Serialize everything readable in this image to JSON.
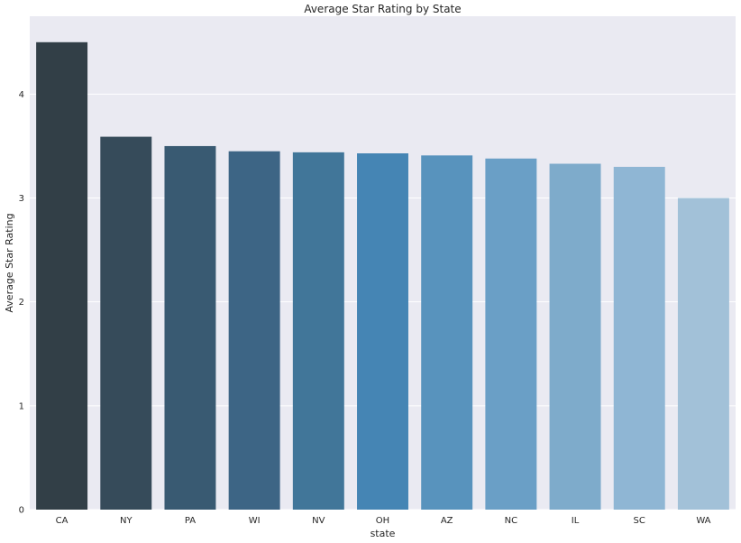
{
  "chart_data": {
    "type": "bar",
    "title": "Average Star Rating by State",
    "xlabel": "state",
    "ylabel": "Average Star Rating",
    "categories": [
      "CA",
      "NY",
      "PA",
      "WI",
      "NV",
      "OH",
      "AZ",
      "NC",
      "IL",
      "SC",
      "WA"
    ],
    "values": [
      4.5,
      3.59,
      3.5,
      3.45,
      3.44,
      3.43,
      3.41,
      3.38,
      3.33,
      3.3,
      3.0
    ],
    "ylim": [
      0,
      4.75
    ],
    "yticks": [
      "0",
      "1",
      "2",
      "3",
      "4"
    ],
    "grid": true,
    "colors": [
      "#323f47",
      "#364b5a",
      "#395a72",
      "#3d6585",
      "#417699",
      "#4585b4",
      "#5893bd",
      "#6a9fc6",
      "#7eabcb",
      "#8fb6d4",
      "#a2c1d8"
    ],
    "background": "#eaeaf2"
  }
}
